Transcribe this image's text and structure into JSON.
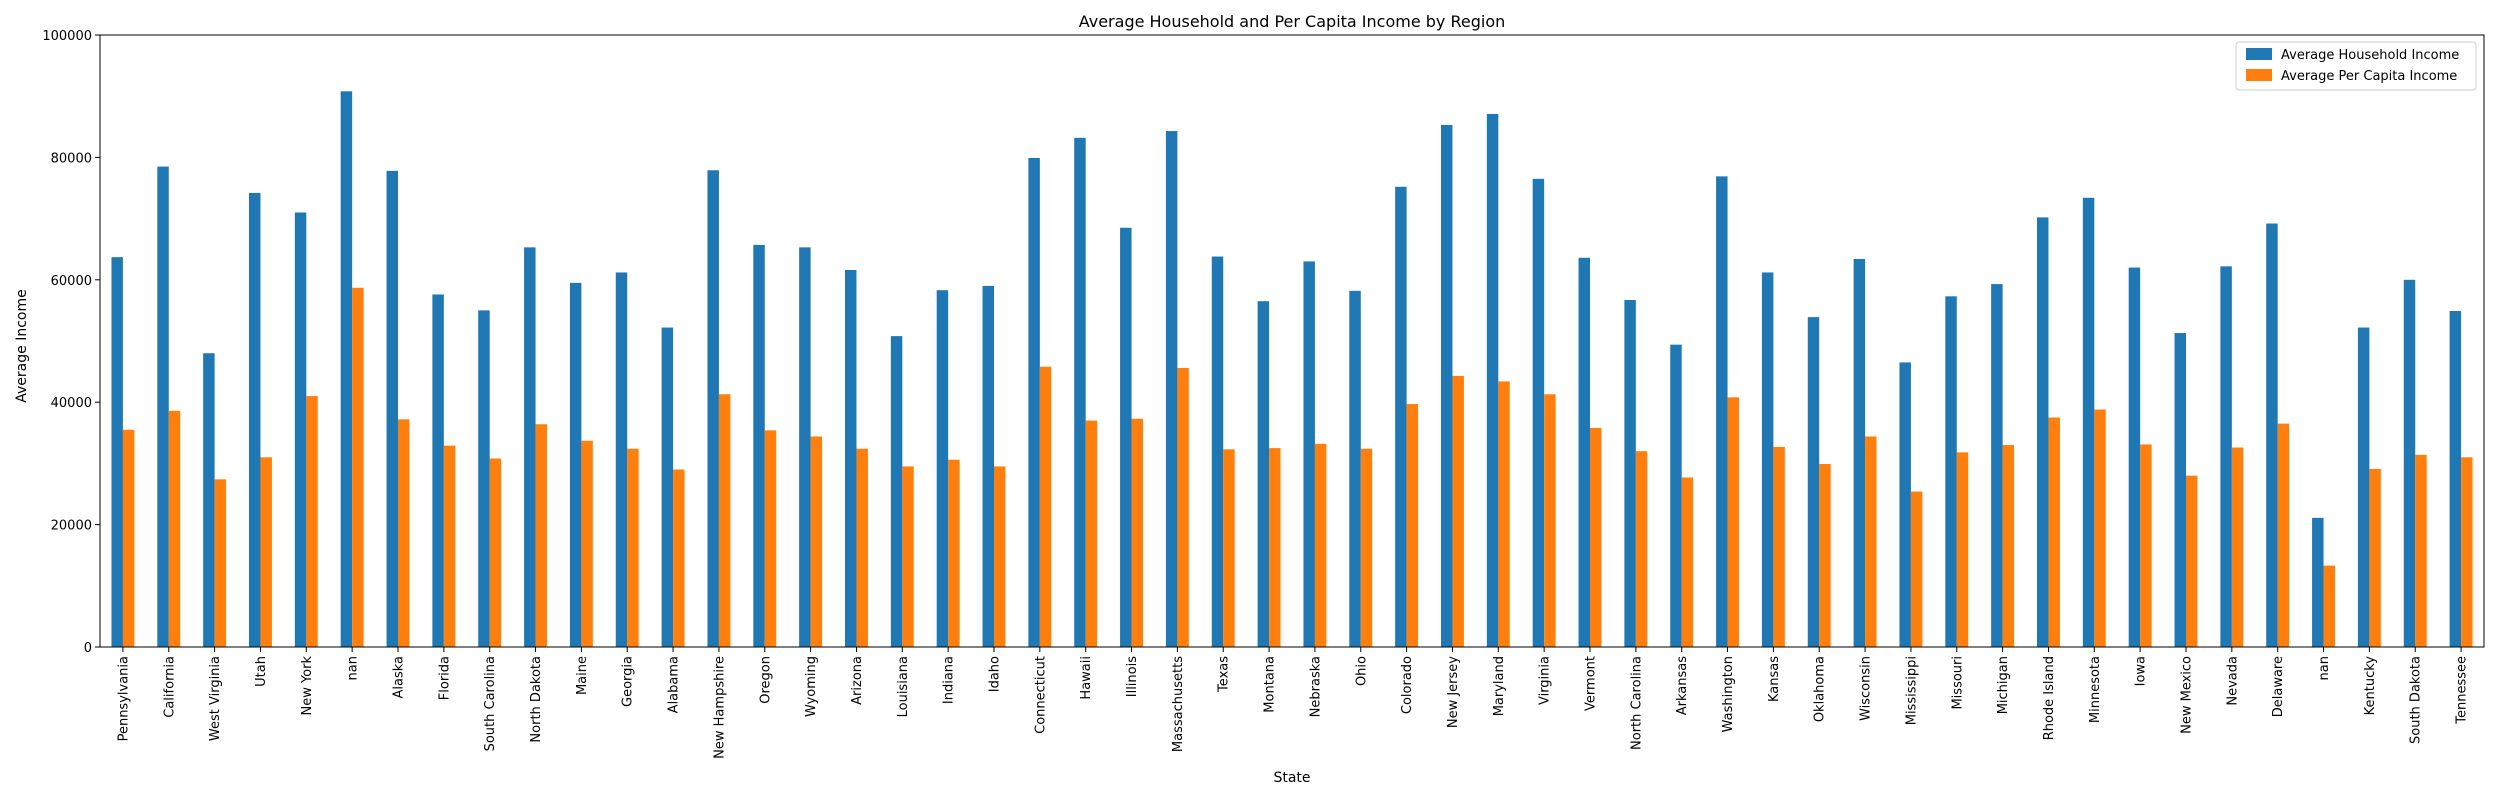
{
  "chart_data": {
    "type": "bar",
    "title": "Average Household and Per Capita Income by Region",
    "xlabel": "State",
    "ylabel": "Average Income",
    "ylim": [
      0,
      100000
    ],
    "yticks": [
      0,
      20000,
      40000,
      60000,
      80000,
      100000
    ],
    "grid": false,
    "legend_position": "top-right",
    "categories": [
      "Pennsylvania",
      "California",
      "West Virginia",
      "Utah",
      "New York",
      "nan",
      "Alaska",
      "Florida",
      "South Carolina",
      "North Dakota",
      "Maine",
      "Georgia",
      "Alabama",
      "New Hampshire",
      "Oregon",
      "Wyoming",
      "Arizona",
      "Louisiana",
      "Indiana",
      "Idaho",
      "Connecticut",
      "Hawaii",
      "Illinois",
      "Massachusetts",
      "Texas",
      "Montana",
      "Nebraska",
      "Ohio",
      "Colorado",
      "New Jersey",
      "Maryland",
      "Virginia",
      "Vermont",
      "North Carolina",
      "Arkansas",
      "Washington",
      "Kansas",
      "Oklahoma",
      "Wisconsin",
      "Mississippi",
      "Missouri",
      "Michigan",
      "Rhode Island",
      "Minnesota",
      "Iowa",
      "New Mexico",
      "Nevada",
      "Delaware",
      "nan",
      "Kentucky",
      "South Dakota",
      "Tennessee"
    ],
    "series": [
      {
        "name": "Average Household Income",
        "color": "#1f77b4",
        "values": [
          63700,
          78500,
          48000,
          74200,
          71000,
          90800,
          77800,
          57600,
          55000,
          65300,
          59500,
          61200,
          52200,
          77900,
          65700,
          65300,
          61600,
          50800,
          58300,
          59000,
          79900,
          83200,
          68500,
          84300,
          63800,
          56500,
          63000,
          58200,
          75200,
          85300,
          87100,
          76500,
          63600,
          56700,
          49400,
          76900,
          61200,
          53900,
          63400,
          46500,
          57300,
          59300,
          70200,
          73400,
          62000,
          51300,
          62200,
          69200,
          21100,
          52200,
          60000,
          54900
        ]
      },
      {
        "name": "Average Per Capita Income",
        "color": "#ff7f0e",
        "values": [
          35500,
          38600,
          27400,
          31000,
          41000,
          58700,
          37200,
          32900,
          30800,
          36400,
          33700,
          32400,
          29000,
          41300,
          35400,
          34400,
          32400,
          29500,
          30600,
          29500,
          45800,
          37000,
          37300,
          45600,
          32300,
          32500,
          33200,
          32400,
          39700,
          44300,
          43400,
          41300,
          35800,
          32000,
          27700,
          40800,
          32700,
          29900,
          34400,
          25400,
          31800,
          33000,
          37500,
          38800,
          33100,
          28000,
          32600,
          36500,
          13300,
          29100,
          31400,
          31000
        ]
      }
    ]
  }
}
